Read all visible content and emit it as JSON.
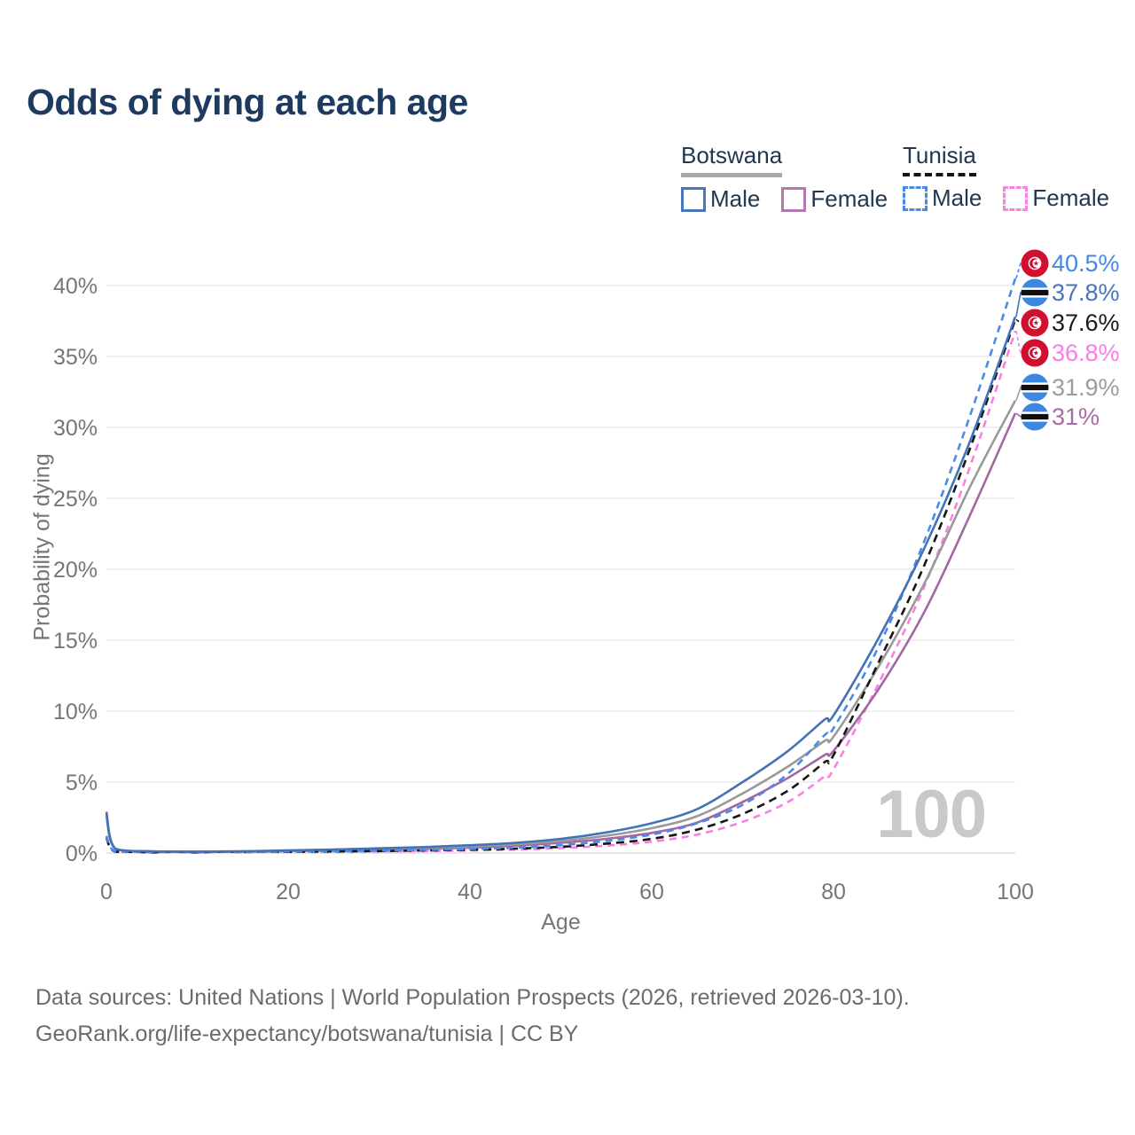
{
  "header": {
    "title": "Odds of dying at each age"
  },
  "legend": {
    "groups": [
      {
        "country": "Botswana",
        "line_style": "solid",
        "underline_color": "#a8a8a8",
        "items": [
          {
            "label": "Male",
            "color": "#4a77b8",
            "dash": false
          },
          {
            "label": "Female",
            "color": "#b478b0",
            "dash": false
          }
        ]
      },
      {
        "country": "Tunisia",
        "line_style": "dashed",
        "underline_color": "#141414",
        "items": [
          {
            "label": "Male",
            "color": "#4a8ae8",
            "dash": true
          },
          {
            "label": "Female",
            "color": "#fb80e4",
            "dash": true
          }
        ]
      }
    ]
  },
  "chart_data": {
    "type": "line",
    "title": "Odds of dying at each age",
    "xlabel": "Age",
    "ylabel": "Probability of dying",
    "watermark": "100",
    "xlim": [
      0,
      100
    ],
    "ylim": [
      0,
      40
    ],
    "x_ticks": [
      0,
      20,
      40,
      60,
      80,
      100
    ],
    "y_tick_values": [
      0,
      5,
      10,
      15,
      20,
      25,
      30,
      35,
      40
    ],
    "y_tick_labels": [
      "0%",
      "5%",
      "10%",
      "15%",
      "20%",
      "25%",
      "30%",
      "35%",
      "40%"
    ],
    "grid": "horizontal",
    "legend_position": "top-right",
    "ages": [
      0,
      1,
      5,
      10,
      15,
      20,
      25,
      30,
      35,
      40,
      45,
      50,
      55,
      60,
      65,
      70,
      75,
      79,
      80,
      85,
      90,
      95,
      100
    ],
    "series": [
      {
        "name": "Tunisia Female",
        "country": "Tunisia",
        "sex": "Female",
        "flag": "tunisia",
        "color": "#fb7ee4",
        "dash": "8 6",
        "end_label": "36.8%",
        "end_label_color": "#fa7ee3",
        "values": [
          1.0,
          0.08,
          0.04,
          0.03,
          0.05,
          0.06,
          0.08,
          0.11,
          0.14,
          0.18,
          0.24,
          0.35,
          0.52,
          0.8,
          1.3,
          2.2,
          3.6,
          5.4,
          5.9,
          12.0,
          18.8,
          27.2,
          36.8
        ]
      },
      {
        "name": "Botswana Female",
        "country": "Botswana",
        "sex": "Female",
        "flag": "botswana",
        "color": "#a268a2",
        "dash": null,
        "end_label": "31%",
        "end_label_color": "#a76ba6",
        "values": [
          2.6,
          0.28,
          0.1,
          0.08,
          0.1,
          0.13,
          0.18,
          0.24,
          0.3,
          0.38,
          0.52,
          0.72,
          1.0,
          1.42,
          2.15,
          3.6,
          5.3,
          6.9,
          7.2,
          11.6,
          17.0,
          23.8,
          31.0
        ]
      },
      {
        "name": "Botswana Combined",
        "country": "Botswana",
        "sex": "Combined",
        "flag": "botswana",
        "color": "#9a9a9a",
        "dash": null,
        "end_label": "31.9%",
        "end_label_color": "#9b9b9b",
        "values": [
          2.75,
          0.29,
          0.11,
          0.09,
          0.11,
          0.15,
          0.21,
          0.28,
          0.36,
          0.46,
          0.62,
          0.85,
          1.22,
          1.75,
          2.6,
          4.2,
          6.1,
          7.9,
          8.2,
          13.2,
          19.0,
          25.8,
          31.9
        ]
      },
      {
        "name": "Tunisia Combined",
        "country": "Tunisia",
        "sex": "Combined",
        "flag": "tunisia",
        "color": "#161616",
        "dash": "9 6",
        "end_label": "37.6%",
        "end_label_color": "#1a1a1a",
        "values": [
          1.1,
          0.09,
          0.04,
          0.04,
          0.06,
          0.08,
          0.11,
          0.14,
          0.18,
          0.23,
          0.31,
          0.44,
          0.66,
          1.0,
          1.65,
          2.75,
          4.4,
          6.4,
          6.9,
          13.5,
          20.3,
          28.5,
          37.6
        ]
      },
      {
        "name": "Tunisia Male",
        "country": "Tunisia",
        "sex": "Male",
        "flag": "tunisia",
        "color": "#4a8ae8",
        "dash": "8 6",
        "end_label": "40.5%",
        "end_label_color": "#4487e5",
        "values": [
          1.2,
          0.1,
          0.05,
          0.05,
          0.07,
          0.1,
          0.13,
          0.17,
          0.22,
          0.28,
          0.38,
          0.55,
          0.85,
          1.3,
          2.1,
          3.4,
          5.6,
          8.3,
          8.8,
          14.6,
          22.0,
          30.8,
          40.5
        ]
      },
      {
        "name": "Botswana Male",
        "country": "Botswana",
        "sex": "Male",
        "flag": "botswana",
        "color": "#4273b8",
        "dash": null,
        "end_label": "37.8%",
        "end_label_color": "#4a74b8",
        "values": [
          2.9,
          0.3,
          0.12,
          0.1,
          0.12,
          0.18,
          0.25,
          0.33,
          0.42,
          0.55,
          0.72,
          1.0,
          1.45,
          2.1,
          3.1,
          5.0,
          7.2,
          9.4,
          9.7,
          15.2,
          21.5,
          29.0,
          37.8
        ]
      }
    ],
    "colors": {
      "title": "#1e3a5f",
      "axis_text": "#767676",
      "gridline": "#ececec",
      "baseline": "#dedede",
      "watermark": "#c9c9c9",
      "tunisia_flag_red": "#d11030",
      "botswana_flag_blue": "#3d87e0",
      "flag_black": "#101010"
    }
  },
  "footer": {
    "line1": "Data sources: United Nations | World Population Prospects (2026, retrieved 2026-03-10).",
    "line2": "GeoRank.org/life-expectancy/botswana/tunisia | CC BY"
  }
}
